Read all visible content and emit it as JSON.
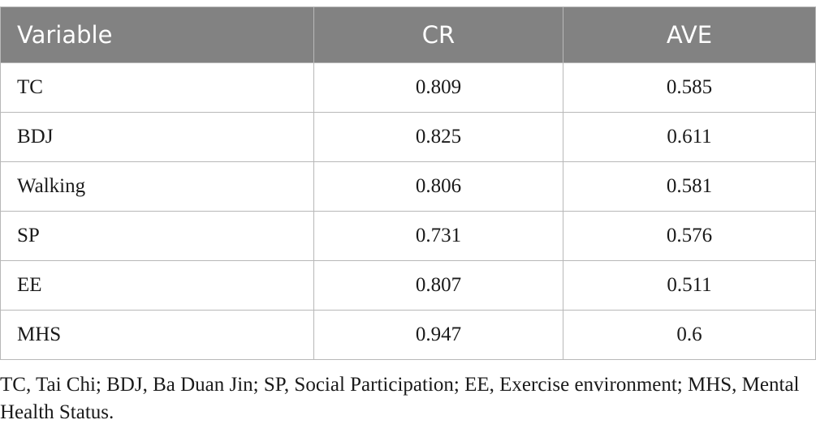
{
  "table": {
    "headers": [
      "Variable",
      "CR",
      "AVE"
    ],
    "rows": [
      [
        "TC",
        "0.809",
        "0.585"
      ],
      [
        "BDJ",
        "0.825",
        "0.611"
      ],
      [
        "Walking",
        "0.806",
        "0.581"
      ],
      [
        "SP",
        "0.731",
        "0.576"
      ],
      [
        "EE",
        "0.807",
        "0.511"
      ],
      [
        "MHS",
        "0.947",
        "0.6"
      ]
    ]
  },
  "footnote": "TC, Tai Chi; BDJ, Ba Duan Jin; SP, Social Participation; EE, Exercise environment; MHS, Mental Health Status.",
  "colors": {
    "header_background": "#828282",
    "header_text": "#ffffff",
    "border": "#b8b8b8"
  }
}
